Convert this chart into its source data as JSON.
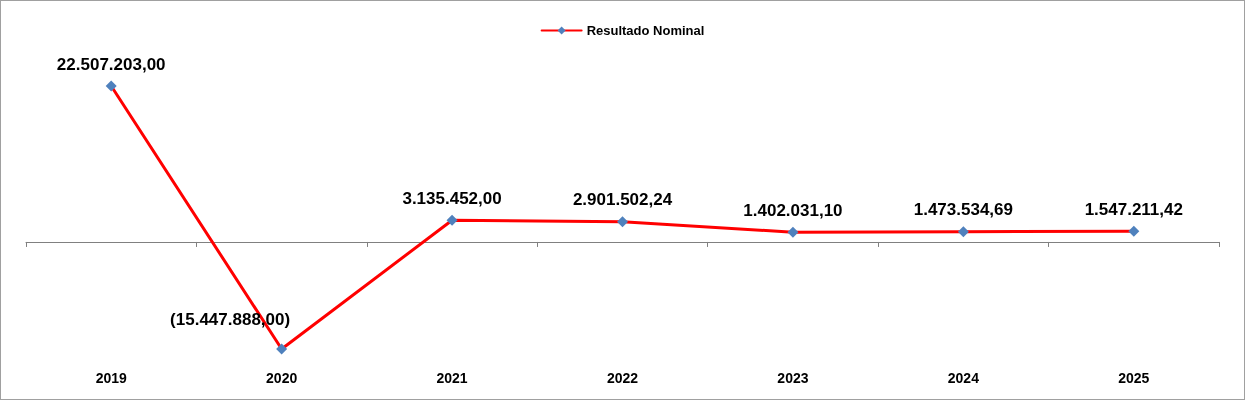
{
  "chart_data": {
    "type": "line",
    "categories": [
      "2019",
      "2020",
      "2021",
      "2022",
      "2023",
      "2024",
      "2025"
    ],
    "series": [
      {
        "name": "Resultado Nominal",
        "color": "#ff0000",
        "values": [
          22507203.0,
          -15447888.0,
          3135452.0,
          2901502.24,
          1402031.1,
          1473534.69,
          1547211.42
        ],
        "value_labels": [
          "22.507.203,00",
          "(15.447.888,00)",
          "3.135.452,00",
          "2.901.502,24",
          "1.402.031,10",
          "1.473.534,69",
          "1.547.211,42"
        ]
      }
    ],
    "legend": "top",
    "marker": "diamond",
    "line_style": "solid",
    "grid": false
  }
}
